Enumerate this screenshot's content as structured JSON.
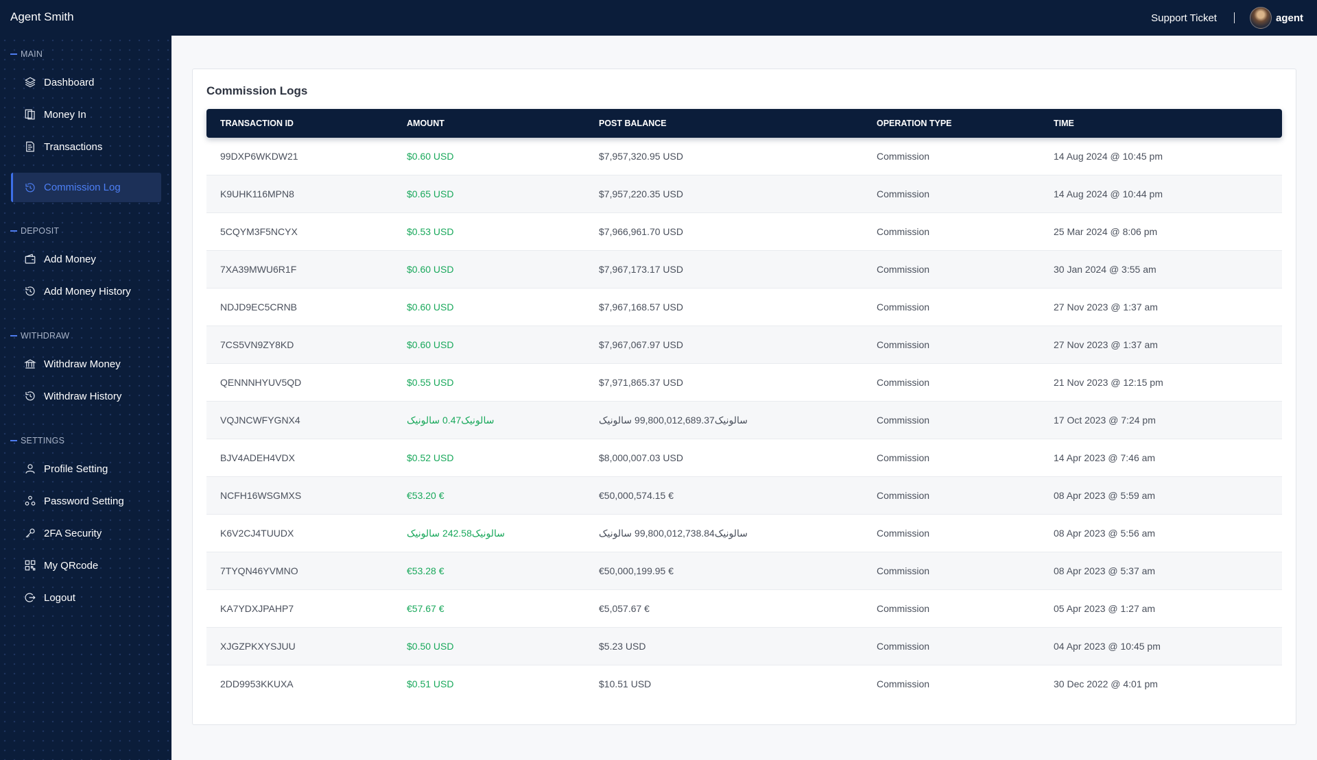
{
  "header": {
    "brand": "Agent Smith",
    "support_label": "Support Ticket",
    "user_name": "agent"
  },
  "sidebar": {
    "sections": [
      {
        "title": "MAIN"
      },
      {
        "title": "DEPOSIT"
      },
      {
        "title": "WITHDRAW"
      },
      {
        "title": "SETTINGS"
      }
    ],
    "items": [
      {
        "label": "Dashboard",
        "icon": "layers-icon"
      },
      {
        "label": "Money In",
        "icon": "copy-icon"
      },
      {
        "label": "Transactions",
        "icon": "receipt-icon"
      },
      {
        "label": "Commission Log",
        "icon": "history-icon",
        "active": true
      },
      {
        "label": "Add Money",
        "icon": "wallet-icon"
      },
      {
        "label": "Add Money History",
        "icon": "history-icon"
      },
      {
        "label": "Withdraw Money",
        "icon": "bank-icon"
      },
      {
        "label": "Withdraw History",
        "icon": "history-icon"
      },
      {
        "label": "Profile Setting",
        "icon": "user-icon"
      },
      {
        "label": "Password Setting",
        "icon": "nodes-icon"
      },
      {
        "label": "2FA Security",
        "icon": "key-icon"
      },
      {
        "label": "My QRcode",
        "icon": "qrcode-icon"
      },
      {
        "label": "Logout",
        "icon": "logout-icon"
      }
    ]
  },
  "main": {
    "title": "Commission Logs",
    "columns": [
      "TRANSACTION ID",
      "AMOUNT",
      "POST BALANCE",
      "OPERATION TYPE",
      "TIME"
    ],
    "rows": [
      {
        "id": "99DXP6WKDW21",
        "amount": "$0.60 USD",
        "balance": "$7,957,320.95 USD",
        "type": "Commission",
        "time": "14 Aug 2024 @ 10:45 pm"
      },
      {
        "id": "K9UHK116MPN8",
        "amount": "$0.65 USD",
        "balance": "$7,957,220.35 USD",
        "type": "Commission",
        "time": "14 Aug 2024 @ 10:44 pm"
      },
      {
        "id": "5CQYM3F5NCYX",
        "amount": "$0.53 USD",
        "balance": "$7,966,961.70 USD",
        "type": "Commission",
        "time": "25 Mar 2024 @ 8:06 pm"
      },
      {
        "id": "7XA39MWU6R1F",
        "amount": "$0.60 USD",
        "balance": "$7,967,173.17 USD",
        "type": "Commission",
        "time": "30 Jan 2024 @ 3:55 am"
      },
      {
        "id": "NDJD9EC5CRNB",
        "amount": "$0.60 USD",
        "balance": "$7,967,168.57 USD",
        "type": "Commission",
        "time": "27 Nov 2023 @ 1:37 am"
      },
      {
        "id": "7CS5VN9ZY8KD",
        "amount": "$0.60 USD",
        "balance": "$7,967,067.97 USD",
        "type": "Commission",
        "time": "27 Nov 2023 @ 1:37 am"
      },
      {
        "id": "QENNNHYUV5QD",
        "amount": "$0.55 USD",
        "balance": "$7,971,865.37 USD",
        "type": "Commission",
        "time": "21 Nov 2023 @ 12:15 pm"
      },
      {
        "id": "VQJNCWFYGNX4",
        "amount": "سالونیک0.47 سالونیک",
        "balance": "سالونیک99,800,012,689.37 سالونیک",
        "type": "Commission",
        "time": "17 Oct 2023 @ 7:24 pm"
      },
      {
        "id": "BJV4ADEH4VDX",
        "amount": "$0.52 USD",
        "balance": "$8,000,007.03 USD",
        "type": "Commission",
        "time": "14 Apr 2023 @ 7:46 am"
      },
      {
        "id": "NCFH16WSGMXS",
        "amount": "€53.20 €",
        "balance": "€50,000,574.15 €",
        "type": "Commission",
        "time": "08 Apr 2023 @ 5:59 am"
      },
      {
        "id": "K6V2CJ4TUUDX",
        "amount": "سالونیک242.58 سالونیک",
        "balance": "سالونیک99,800,012,738.84 سالونیک",
        "type": "Commission",
        "time": "08 Apr 2023 @ 5:56 am"
      },
      {
        "id": "7TYQN46YVMNO",
        "amount": "€53.28 €",
        "balance": "€50,000,199.95 €",
        "type": "Commission",
        "time": "08 Apr 2023 @ 5:37 am"
      },
      {
        "id": "KA7YDXJPAHP7",
        "amount": "€57.67 €",
        "balance": "€5,057.67 €",
        "type": "Commission",
        "time": "05 Apr 2023 @ 1:27 am"
      },
      {
        "id": "XJGZPKXYSJUU",
        "amount": "$0.50 USD",
        "balance": "$5.23 USD",
        "type": "Commission",
        "time": "04 Apr 2023 @ 10:45 pm"
      },
      {
        "id": "2DD9953KKUXA",
        "amount": "$0.51 USD",
        "balance": "$10.51 USD",
        "type": "Commission",
        "time": "30 Dec 2022 @ 4:01 pm"
      }
    ]
  }
}
